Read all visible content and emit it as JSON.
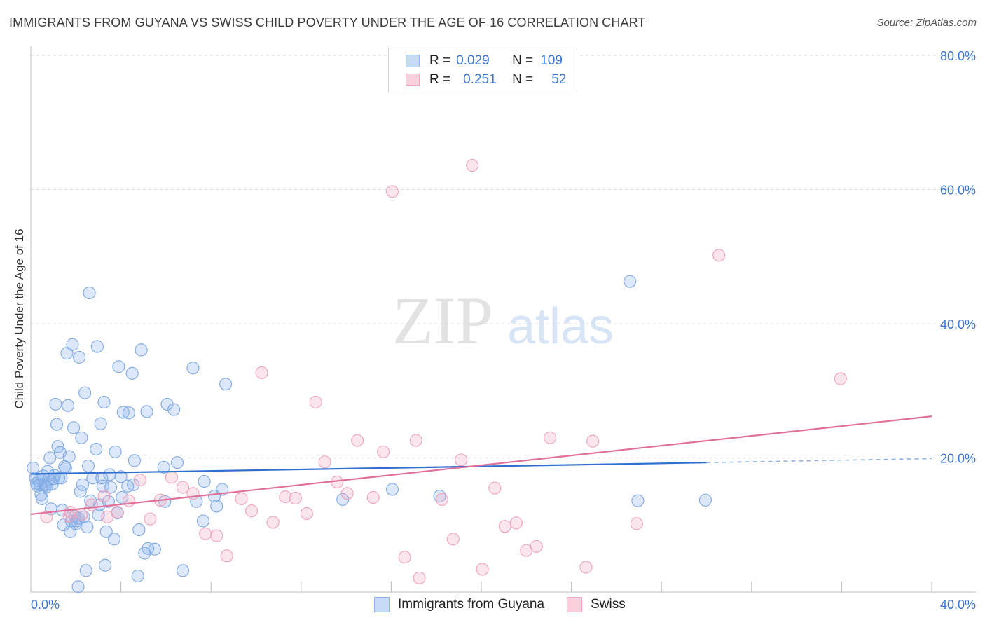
{
  "title": "IMMIGRANTS FROM GUYANA VS SWISS CHILD POVERTY UNDER THE AGE OF 16 CORRELATION CHART",
  "source": "Source: ZipAtlas.com",
  "watermark": {
    "zip": "ZIP",
    "atlas": "atlas"
  },
  "legend": {
    "rows": [
      {
        "r_label": "R =",
        "r_value": "0.029",
        "n_label": "N =",
        "n_value": "109",
        "color": "#8cb4ea"
      },
      {
        "r_label": "R =",
        "r_value": "0.251",
        "n_label": "N =",
        "n_value": "52",
        "color": "#f3a8c0"
      }
    ]
  },
  "bottom_legend": [
    {
      "label": "Immigrants from Guyana",
      "color": "#8cb4ea"
    },
    {
      "label": "Swiss",
      "color": "#f3a8c0"
    }
  ],
  "chart_data": {
    "type": "scatter",
    "title": "IMMIGRANTS FROM GUYANA VS SWISS CHILD POVERTY UNDER THE AGE OF 16 CORRELATION CHART",
    "xlabel": "",
    "ylabel": "Child Poverty Under the Age of 16",
    "xlim": [
      0,
      40
    ],
    "ylim": [
      0,
      80
    ],
    "x_tick_labels": [
      "0.0%",
      "40.0%"
    ],
    "y_ticks": [
      20,
      40,
      60,
      80
    ],
    "y_tick_labels": [
      "20.0%",
      "40.0%",
      "60.0%",
      "80.0%"
    ],
    "grid": "horizontal dashed",
    "legend_position": "top-center",
    "series": [
      {
        "name": "Immigrants from Guyana",
        "color": "#6f9fdc",
        "trend": {
          "x": [
            0,
            30,
            40
          ],
          "y": [
            17.6,
            19.3,
            19.9
          ],
          "solid_until": 30
        },
        "points": [
          [
            0.1,
            18.5
          ],
          [
            0.2,
            17.0
          ],
          [
            0.25,
            16.2
          ],
          [
            0.3,
            15.8
          ],
          [
            0.35,
            16.6
          ],
          [
            0.4,
            16.0
          ],
          [
            0.45,
            14.5
          ],
          [
            0.5,
            13.9
          ],
          [
            0.55,
            17.3
          ],
          [
            0.6,
            16.1
          ],
          [
            0.65,
            15.9
          ],
          [
            0.7,
            15.7
          ],
          [
            0.75,
            18.0
          ],
          [
            0.8,
            16.8
          ],
          [
            0.85,
            20.0
          ],
          [
            0.9,
            12.4
          ],
          [
            0.95,
            16.1
          ],
          [
            1.0,
            16.9
          ],
          [
            1.05,
            17.4
          ],
          [
            1.1,
            28.0
          ],
          [
            1.15,
            25.0
          ],
          [
            1.2,
            21.7
          ],
          [
            1.25,
            17.0
          ],
          [
            1.3,
            20.8
          ],
          [
            1.35,
            17.0
          ],
          [
            1.4,
            12.2
          ],
          [
            1.45,
            10.0
          ],
          [
            1.5,
            18.7
          ],
          [
            1.55,
            18.5
          ],
          [
            1.6,
            35.6
          ],
          [
            1.65,
            27.8
          ],
          [
            1.7,
            20.2
          ],
          [
            1.75,
            9.0
          ],
          [
            1.8,
            10.6
          ],
          [
            1.85,
            36.9
          ],
          [
            1.9,
            24.5
          ],
          [
            1.95,
            11.3
          ],
          [
            2.0,
            10.2
          ],
          [
            2.05,
            10.6
          ],
          [
            2.1,
            11.0
          ],
          [
            2.15,
            35.0
          ],
          [
            2.2,
            15.0
          ],
          [
            2.25,
            23.0
          ],
          [
            2.3,
            16.0
          ],
          [
            2.35,
            11.2
          ],
          [
            2.4,
            29.7
          ],
          [
            2.45,
            3.2
          ],
          [
            2.5,
            9.7
          ],
          [
            2.55,
            18.8
          ],
          [
            2.6,
            44.6
          ],
          [
            2.65,
            13.6
          ],
          [
            2.75,
            17.0
          ],
          [
            2.9,
            21.3
          ],
          [
            2.95,
            36.6
          ],
          [
            3.0,
            11.5
          ],
          [
            3.05,
            13.0
          ],
          [
            3.1,
            25.1
          ],
          [
            3.15,
            17.0
          ],
          [
            3.2,
            15.8
          ],
          [
            3.25,
            28.3
          ],
          [
            3.3,
            4.0
          ],
          [
            3.35,
            9.0
          ],
          [
            3.45,
            13.5
          ],
          [
            3.5,
            17.5
          ],
          [
            3.55,
            15.6
          ],
          [
            3.7,
            7.9
          ],
          [
            3.75,
            20.9
          ],
          [
            3.85,
            11.8
          ],
          [
            3.9,
            33.6
          ],
          [
            4.0,
            17.2
          ],
          [
            4.05,
            14.1
          ],
          [
            4.1,
            26.8
          ],
          [
            4.3,
            15.8
          ],
          [
            4.35,
            26.7
          ],
          [
            4.5,
            32.6
          ],
          [
            4.55,
            16.0
          ],
          [
            4.6,
            19.6
          ],
          [
            4.75,
            2.4
          ],
          [
            4.8,
            9.3
          ],
          [
            4.9,
            36.1
          ],
          [
            5.05,
            5.8
          ],
          [
            5.15,
            26.9
          ],
          [
            5.2,
            6.5
          ],
          [
            5.5,
            6.4
          ],
          [
            5.95,
            13.5
          ],
          [
            5.9,
            18.6
          ],
          [
            6.05,
            28.0
          ],
          [
            6.35,
            27.2
          ],
          [
            6.5,
            19.3
          ],
          [
            6.75,
            3.2
          ],
          [
            7.2,
            33.4
          ],
          [
            7.35,
            13.5
          ],
          [
            7.65,
            10.6
          ],
          [
            7.7,
            16.5
          ],
          [
            8.25,
            12.8
          ],
          [
            8.15,
            14.3
          ],
          [
            8.5,
            15.3
          ],
          [
            8.65,
            31.0
          ],
          [
            13.85,
            13.8
          ],
          [
            16.05,
            15.3
          ],
          [
            18.15,
            14.3
          ],
          [
            26.6,
            46.3
          ],
          [
            26.95,
            13.6
          ],
          [
            29.95,
            13.7
          ],
          [
            2.1,
            0.8
          ]
        ]
      },
      {
        "name": "Swiss",
        "color": "#ee8fb0",
        "trend": {
          "x": [
            0,
            40
          ],
          "y": [
            11.6,
            26.2
          ]
        },
        "points": [
          [
            0.7,
            11.2
          ],
          [
            1.7,
            11.3
          ],
          [
            1.75,
            11.9
          ],
          [
            2.25,
            11.5
          ],
          [
            2.7,
            13.0
          ],
          [
            3.25,
            14.3
          ],
          [
            3.4,
            11.2
          ],
          [
            3.85,
            11.9
          ],
          [
            4.35,
            13.6
          ],
          [
            4.85,
            16.7
          ],
          [
            5.3,
            10.9
          ],
          [
            5.75,
            13.7
          ],
          [
            6.25,
            17.1
          ],
          [
            6.75,
            15.6
          ],
          [
            7.2,
            14.7
          ],
          [
            7.75,
            8.7
          ],
          [
            8.25,
            8.4
          ],
          [
            8.7,
            5.4
          ],
          [
            9.35,
            13.9
          ],
          [
            9.8,
            12.1
          ],
          [
            10.25,
            32.7
          ],
          [
            10.75,
            10.4
          ],
          [
            11.3,
            14.2
          ],
          [
            11.75,
            14.0
          ],
          [
            12.25,
            11.7
          ],
          [
            12.65,
            28.3
          ],
          [
            13.05,
            19.4
          ],
          [
            13.6,
            16.4
          ],
          [
            14.05,
            14.7
          ],
          [
            14.5,
            22.6
          ],
          [
            15.2,
            14.1
          ],
          [
            15.65,
            20.9
          ],
          [
            16.05,
            59.7
          ],
          [
            16.6,
            5.2
          ],
          [
            17.1,
            22.6
          ],
          [
            17.25,
            2.1
          ],
          [
            18.25,
            13.8
          ],
          [
            18.75,
            7.9
          ],
          [
            19.1,
            19.7
          ],
          [
            19.6,
            63.6
          ],
          [
            20.05,
            3.4
          ],
          [
            20.6,
            15.5
          ],
          [
            21.05,
            9.8
          ],
          [
            21.55,
            10.3
          ],
          [
            22.0,
            6.2
          ],
          [
            22.45,
            6.8
          ],
          [
            23.05,
            23.0
          ],
          [
            24.65,
            3.7
          ],
          [
            24.95,
            22.5
          ],
          [
            26.9,
            10.2
          ],
          [
            30.55,
            50.2
          ],
          [
            35.95,
            31.8
          ]
        ]
      }
    ]
  }
}
